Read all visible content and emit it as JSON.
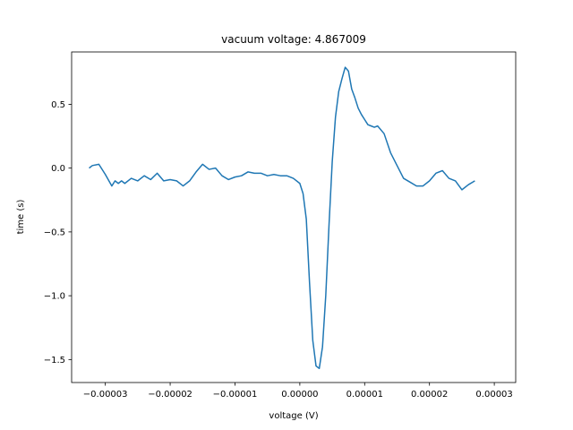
{
  "chart_data": {
    "type": "line",
    "title": "vacuum voltage: 4.867009",
    "xlabel": "voltage (V)",
    "ylabel": "time (s)",
    "xlim": [
      -3.52e-05,
      3.33e-05
    ],
    "ylim": [
      -1.68,
      0.91
    ],
    "xticks": [
      -3e-05,
      -2e-05,
      -1e-05,
      0.0,
      1e-05,
      2e-05,
      3e-05
    ],
    "xtick_labels": [
      "−0.00003",
      "−0.00002",
      "−0.00001",
      "0.00000",
      "0.00001",
      "0.00002",
      "0.00003"
    ],
    "yticks": [
      -1.5,
      -1.0,
      -0.5,
      0.0,
      0.5
    ],
    "ytick_labels": [
      "−1.5",
      "−1.0",
      "−0.5",
      "0.0",
      "0.5"
    ],
    "grid": false,
    "legend": "none",
    "color": "#1f77b4",
    "series": [
      {
        "x": [
          -3.25e-05,
          -3.2e-05,
          -3.1e-05,
          -3e-05,
          -2.9e-05,
          -2.85e-05,
          -2.8e-05,
          -2.75e-05,
          -2.7e-05,
          -2.6e-05,
          -2.5e-05,
          -2.4e-05,
          -2.3e-05,
          -2.2e-05,
          -2.1e-05,
          -2e-05,
          -1.9e-05,
          -1.8e-05,
          -1.7e-05,
          -1.6e-05,
          -1.5e-05,
          -1.4e-05,
          -1.3e-05,
          -1.2e-05,
          -1.1e-05,
          -1e-05,
          -9e-06,
          -8e-06,
          -7e-06,
          -6e-06,
          -5e-06,
          -4e-06,
          -3e-06,
          -2e-06,
          -1e-06,
          0.0,
          5e-07,
          1e-06,
          1.5e-06,
          2e-06,
          2.5e-06,
          3e-06,
          3.5e-06,
          4e-06,
          4.5e-06,
          5e-06,
          5.5e-06,
          6e-06,
          6.5e-06,
          7e-06,
          7.5e-06,
          8e-06,
          8.5e-06,
          9e-06,
          9.5e-06,
          1e-05,
          1.05e-05,
          1.1e-05,
          1.15e-05,
          1.2e-05,
          1.3e-05,
          1.4e-05,
          1.5e-05,
          1.6e-05,
          1.7e-05,
          1.8e-05,
          1.9e-05,
          2e-05,
          2.1e-05,
          2.2e-05,
          2.3e-05,
          2.4e-05,
          2.5e-05,
          2.6e-05,
          2.7e-05
        ],
        "y": [
          0.0,
          0.02,
          0.03,
          -0.05,
          -0.14,
          -0.1,
          -0.12,
          -0.1,
          -0.12,
          -0.08,
          -0.1,
          -0.06,
          -0.09,
          -0.04,
          -0.1,
          -0.09,
          -0.1,
          -0.14,
          -0.1,
          -0.03,
          0.03,
          -0.01,
          0.0,
          -0.06,
          -0.09,
          -0.07,
          -0.06,
          -0.03,
          -0.04,
          -0.04,
          -0.06,
          -0.05,
          -0.06,
          -0.06,
          -0.08,
          -0.12,
          -0.2,
          -0.4,
          -0.9,
          -1.35,
          -1.55,
          -1.57,
          -1.4,
          -1.0,
          -0.45,
          0.05,
          0.4,
          0.6,
          0.7,
          0.79,
          0.76,
          0.62,
          0.55,
          0.47,
          0.42,
          0.38,
          0.34,
          0.33,
          0.32,
          0.33,
          0.27,
          0.12,
          0.02,
          -0.08,
          -0.11,
          -0.14,
          -0.14,
          -0.1,
          -0.04,
          -0.02,
          -0.08,
          -0.1,
          -0.17,
          -0.13,
          -0.1
        ]
      }
    ]
  }
}
